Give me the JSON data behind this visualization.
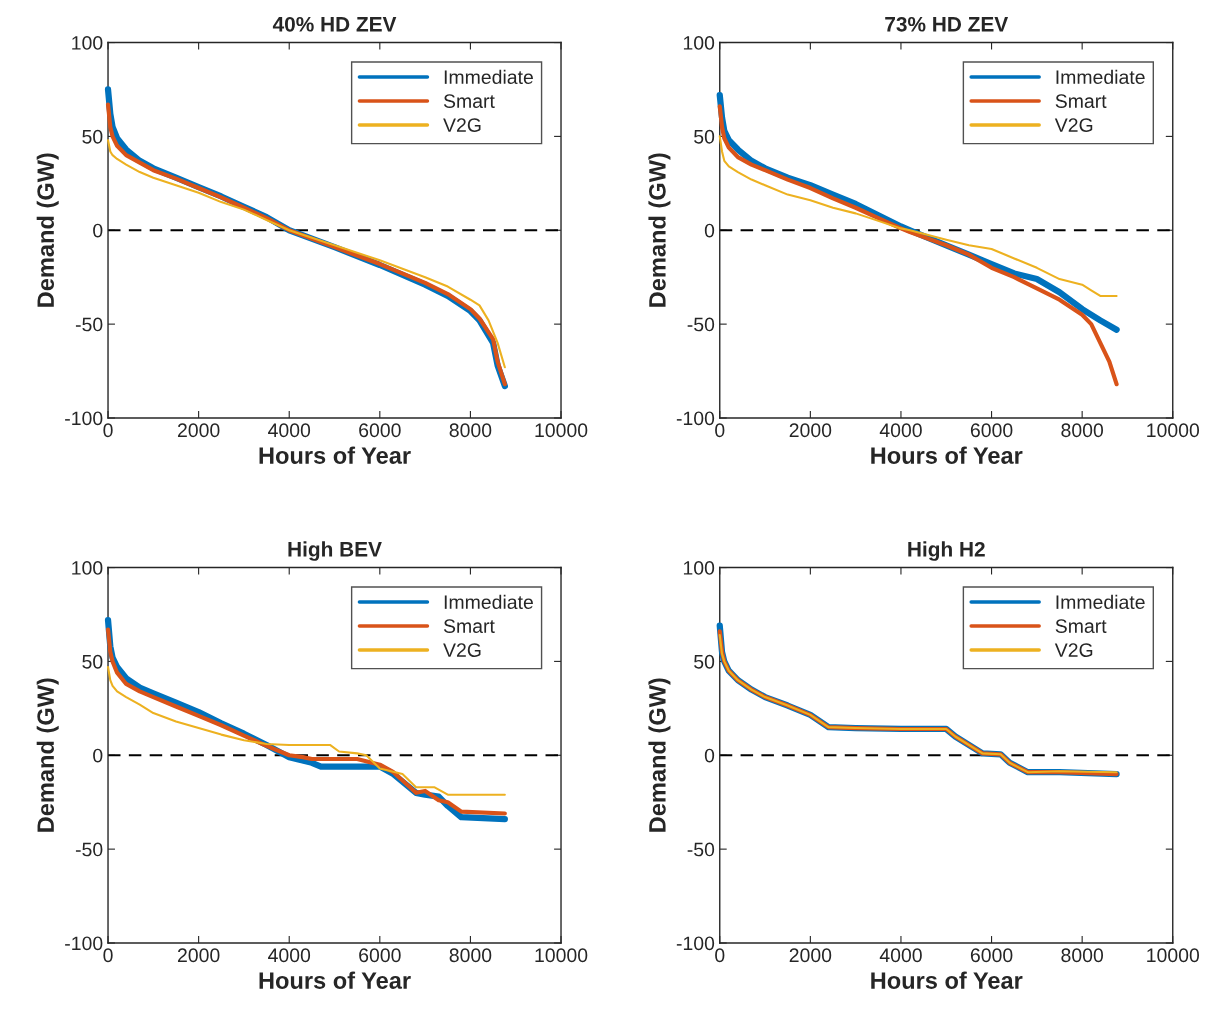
{
  "chart_data": [
    {
      "type": "line",
      "title": "40% HD ZEV",
      "xlabel": "Hours of Year",
      "ylabel": "Demand (GW)",
      "xlim": [
        0,
        10000
      ],
      "xticks": [
        0,
        2000,
        4000,
        6000,
        8000,
        10000
      ],
      "ylim": [
        -100,
        100
      ],
      "yticks": [
        -100,
        -50,
        0,
        50,
        100
      ],
      "grid": false,
      "legend": "top right",
      "line_style": "solid",
      "ref_lines": [
        {
          "axis": "y",
          "value": 0,
          "color": "#000000",
          "line_style": "dashed"
        }
      ],
      "series": [
        {
          "name": "Immediate",
          "color": "#0072bd",
          "x": [
            0,
            50,
            100,
            200,
            400,
            700,
            1000,
            1500,
            2000,
            2500,
            3000,
            3500,
            4000,
            5000,
            6000,
            7000,
            7500,
            8000,
            8200,
            8500,
            8600,
            8760
          ],
          "values": [
            75,
            62,
            55,
            49,
            43,
            37,
            33,
            28,
            23,
            18,
            12.5,
            7,
            0,
            -9,
            -18.5,
            -29,
            -35,
            -43,
            -48,
            -60,
            -72,
            -83
          ]
        },
        {
          "name": "Smart",
          "color": "#d95319",
          "x": [
            0,
            50,
            100,
            200,
            400,
            700,
            1000,
            1500,
            2000,
            2500,
            3000,
            3500,
            4000,
            5000,
            6000,
            7000,
            7500,
            8000,
            8200,
            8500,
            8600,
            8760
          ],
          "values": [
            67,
            55,
            50,
            45,
            40,
            36,
            32,
            27.5,
            22.5,
            17.5,
            12,
            6.5,
            0,
            -9,
            -18,
            -28,
            -34,
            -42,
            -47,
            -58,
            -70,
            -82
          ]
        },
        {
          "name": "V2G",
          "color": "#edb120",
          "x": [
            0,
            50,
            100,
            200,
            400,
            700,
            1000,
            1500,
            2000,
            2500,
            3000,
            3500,
            4000,
            5000,
            6000,
            7000,
            7500,
            8000,
            8200,
            8400,
            8600,
            8760
          ],
          "values": [
            48,
            42,
            40,
            38,
            35,
            31,
            28,
            24,
            20,
            15,
            11,
            5.5,
            0,
            -8,
            -16,
            -25,
            -30,
            -37,
            -40,
            -48,
            -60,
            -73
          ]
        }
      ]
    },
    {
      "type": "line",
      "title": "73% HD ZEV",
      "xlabel": "Hours of Year",
      "ylabel": "Demand (GW)",
      "xlim": [
        0,
        10000
      ],
      "xticks": [
        0,
        2000,
        4000,
        6000,
        8000,
        10000
      ],
      "ylim": [
        -100,
        100
      ],
      "yticks": [
        -100,
        -50,
        0,
        50,
        100
      ],
      "grid": false,
      "legend": "top right",
      "line_style": "solid",
      "ref_lines": [
        {
          "axis": "y",
          "value": 0,
          "color": "#000000",
          "line_style": "dashed"
        }
      ],
      "series": [
        {
          "name": "Immediate",
          "color": "#0072bd",
          "x": [
            0,
            50,
            100,
            200,
            400,
            700,
            1000,
            1500,
            2000,
            2500,
            3000,
            3500,
            4000,
            4200,
            5000,
            5500,
            6000,
            6500,
            7000,
            7500,
            8000,
            8400,
            8760
          ],
          "values": [
            72,
            60,
            53,
            48,
            43,
            37,
            33,
            28,
            24,
            19,
            14,
            8,
            2,
            0,
            -8,
            -13,
            -18,
            -23,
            -26,
            -33,
            -42,
            -48,
            -53
          ]
        },
        {
          "name": "Smart",
          "color": "#d95319",
          "x": [
            0,
            50,
            100,
            200,
            400,
            700,
            1000,
            1500,
            2000,
            2500,
            3000,
            3500,
            4000,
            4200,
            5000,
            5500,
            6000,
            6500,
            7000,
            7500,
            8000,
            8200,
            8400,
            8600,
            8760
          ],
          "values": [
            66,
            55,
            49,
            44,
            39,
            35,
            32,
            27,
            22.5,
            17,
            12,
            6.5,
            1,
            -1,
            -8,
            -13,
            -20,
            -25,
            -31,
            -37,
            -45,
            -50,
            -60,
            -70,
            -82
          ]
        },
        {
          "name": "V2G",
          "color": "#edb120",
          "x": [
            0,
            50,
            100,
            200,
            400,
            700,
            1000,
            1500,
            2000,
            2500,
            3000,
            3500,
            4000,
            4200,
            5000,
            5500,
            6000,
            6500,
            7000,
            7500,
            8000,
            8200,
            8400,
            8760
          ],
          "values": [
            50,
            42,
            37,
            34,
            31,
            27,
            24,
            19,
            16,
            12,
            9,
            5,
            1,
            0,
            -5,
            -8,
            -10,
            -15,
            -20,
            -26,
            -29,
            -32,
            -35,
            -35
          ]
        }
      ]
    },
    {
      "type": "line",
      "title": "High BEV",
      "xlabel": "Hours of Year",
      "ylabel": "Demand (GW)",
      "xlim": [
        0,
        10000
      ],
      "xticks": [
        0,
        2000,
        4000,
        6000,
        8000,
        10000
      ],
      "ylim": [
        -100,
        100
      ],
      "yticks": [
        -100,
        -50,
        0,
        50,
        100
      ],
      "grid": false,
      "legend": "top right",
      "line_style": "solid",
      "ref_lines": [
        {
          "axis": "y",
          "value": 0,
          "color": "#000000",
          "line_style": "dashed"
        }
      ],
      "series": [
        {
          "name": "Immediate",
          "color": "#0072bd",
          "x": [
            0,
            50,
            100,
            200,
            400,
            700,
            1000,
            1500,
            2000,
            2500,
            3000,
            3500,
            4000,
            4500,
            4700,
            5500,
            6000,
            6300,
            6800,
            7000,
            7300,
            7500,
            7800,
            8760
          ],
          "values": [
            72,
            58,
            52,
            47,
            41,
            36,
            33,
            28,
            23,
            17,
            11.5,
            5.5,
            -1,
            -4,
            -6,
            -6,
            -6,
            -10,
            -20,
            -21,
            -22,
            -27,
            -33,
            -34
          ]
        },
        {
          "name": "Smart",
          "color": "#d95319",
          "x": [
            0,
            50,
            100,
            200,
            400,
            700,
            1000,
            1500,
            2000,
            2500,
            3000,
            3500,
            4000,
            4300,
            4500,
            5500,
            6000,
            6300,
            6800,
            7000,
            7300,
            7500,
            7800,
            8760
          ],
          "values": [
            67,
            55,
            50,
            44,
            38,
            34,
            31,
            26,
            21,
            16,
            10.5,
            5,
            0,
            -1,
            -2,
            -2,
            -5,
            -9,
            -20,
            -19,
            -24,
            -25,
            -30,
            -31
          ]
        },
        {
          "name": "V2G",
          "color": "#edb120",
          "x": [
            0,
            50,
            100,
            200,
            400,
            700,
            1000,
            1500,
            2000,
            2500,
            3000,
            3500,
            4000,
            4900,
            5100,
            5500,
            5700,
            6000,
            6500,
            6800,
            7200,
            7500,
            8760
          ],
          "values": [
            47,
            40,
            37,
            34,
            31,
            27,
            22.5,
            18,
            14.5,
            11,
            8,
            6,
            5.5,
            5.5,
            2,
            1,
            0,
            -7,
            -10,
            -17,
            -17,
            -21,
            -21
          ]
        }
      ]
    },
    {
      "type": "line",
      "title": "High H2",
      "xlabel": "Hours of Year",
      "ylabel": "Demand (GW)",
      "xlim": [
        0,
        10000
      ],
      "xticks": [
        0,
        2000,
        4000,
        6000,
        8000,
        10000
      ],
      "ylim": [
        -100,
        100
      ],
      "yticks": [
        -100,
        -50,
        0,
        50,
        100
      ],
      "grid": false,
      "legend": "top right",
      "line_style": "solid",
      "ref_lines": [
        {
          "axis": "y",
          "value": 0,
          "color": "#000000",
          "line_style": "dashed"
        }
      ],
      "series": [
        {
          "name": "Immediate",
          "color": "#0072bd",
          "x": [
            0,
            50,
            100,
            200,
            400,
            700,
            1000,
            1500,
            2000,
            2400,
            3000,
            4000,
            5000,
            5200,
            5800,
            6200,
            6400,
            6800,
            7500,
            8760
          ],
          "values": [
            69,
            55,
            50,
            45,
            40,
            35,
            31,
            26.5,
            21.5,
            15,
            14.5,
            14,
            14,
            10,
            1,
            0.5,
            -4,
            -9,
            -9,
            -10
          ]
        },
        {
          "name": "Smart",
          "color": "#d95319",
          "x": [
            0,
            50,
            100,
            200,
            400,
            700,
            1000,
            1500,
            2000,
            2400,
            3000,
            4000,
            5000,
            5200,
            5800,
            6200,
            6400,
            6800,
            7500,
            8760
          ],
          "values": [
            66,
            55,
            50,
            45,
            40,
            35,
            31,
            26.5,
            21.5,
            15,
            14.5,
            14,
            14,
            10,
            1,
            0.5,
            -4,
            -9,
            -9,
            -10
          ]
        },
        {
          "name": "V2G",
          "color": "#edb120",
          "x": [
            0,
            50,
            100,
            200,
            400,
            700,
            1000,
            1500,
            2000,
            2400,
            3000,
            4000,
            5000,
            5200,
            5800,
            6200,
            6400,
            6800,
            7500,
            8760
          ],
          "values": [
            64,
            54,
            50,
            45,
            40,
            35,
            31,
            26.5,
            21.5,
            15,
            14.5,
            14,
            14,
            10,
            1,
            0.5,
            -4,
            -9,
            -8.5,
            -9
          ]
        }
      ]
    }
  ]
}
